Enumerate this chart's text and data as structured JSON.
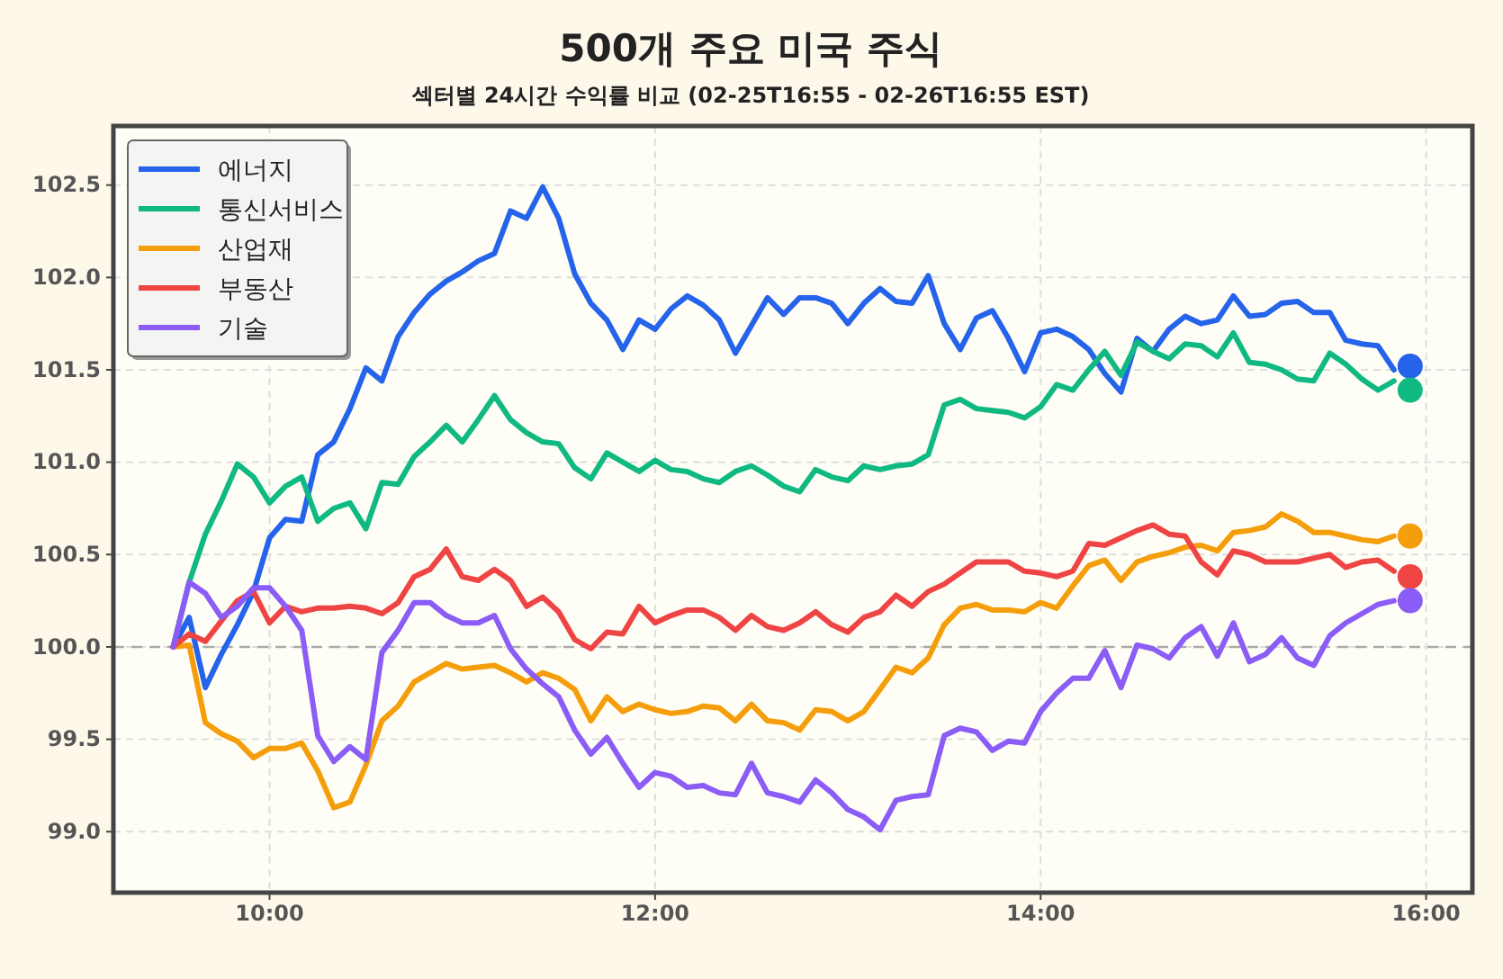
{
  "chart_data": {
    "type": "line",
    "title": "500개 주요 미국 주식",
    "subtitle": "섹터별 24시간 수익률 비교 (02-25T16:55 - 02-26T16:55 EST)",
    "x": [
      9.5,
      9.583,
      9.667,
      9.75,
      9.833,
      9.917,
      10,
      10.083,
      10.167,
      10.25,
      10.333,
      10.417,
      10.5,
      10.583,
      10.667,
      10.75,
      10.833,
      10.917,
      11,
      11.083,
      11.167,
      11.25,
      11.333,
      11.417,
      11.5,
      11.583,
      11.667,
      11.75,
      11.833,
      11.917,
      12,
      12.083,
      12.167,
      12.25,
      12.333,
      12.417,
      12.5,
      12.583,
      12.667,
      12.75,
      12.833,
      12.917,
      13,
      13.083,
      13.167,
      13.25,
      13.333,
      13.417,
      13.5,
      13.583,
      13.667,
      13.75,
      13.833,
      13.917,
      14,
      14.083,
      14.167,
      14.25,
      14.333,
      14.417,
      14.5,
      14.583,
      14.667,
      14.75,
      14.833,
      14.917,
      15,
      15.083,
      15.167,
      15.25,
      15.333,
      15.417,
      15.5,
      15.583,
      15.667,
      15.75,
      15.833,
      15.917
    ],
    "series": [
      {
        "name": "에너지",
        "color": "#2563eb",
        "values": [
          100.0,
          100.16,
          99.78,
          99.96,
          100.12,
          100.3,
          100.59,
          100.69,
          100.68,
          101.04,
          101.11,
          101.29,
          101.51,
          101.44,
          101.68,
          101.81,
          101.91,
          101.98,
          102.03,
          102.09,
          102.13,
          102.36,
          102.32,
          102.49,
          102.32,
          102.02,
          101.86,
          101.77,
          101.61,
          101.77,
          101.72,
          101.83,
          101.9,
          101.85,
          101.77,
          101.59,
          101.74,
          101.89,
          101.8,
          101.89,
          101.89,
          101.86,
          101.75,
          101.86,
          101.94,
          101.87,
          101.86,
          102.01,
          101.75,
          101.61,
          101.78,
          101.82,
          101.67,
          101.49,
          101.7,
          101.72,
          101.68,
          101.61,
          101.48,
          101.38,
          101.67,
          101.6,
          101.72,
          101.79,
          101.75,
          101.77,
          101.9,
          101.79,
          101.8,
          101.86,
          101.87,
          101.81,
          101.81,
          101.66,
          101.64,
          101.63,
          101.5,
          null
        ]
      },
      {
        "name": "통신서비스",
        "color": "#10b981",
        "values": [
          100.0,
          100.35,
          100.61,
          100.79,
          100.99,
          100.92,
          100.78,
          100.87,
          100.92,
          100.68,
          100.75,
          100.78,
          100.64,
          100.89,
          100.88,
          101.03,
          101.11,
          101.2,
          101.11,
          101.23,
          101.36,
          101.23,
          101.16,
          101.11,
          101.1,
          100.97,
          100.91,
          101.05,
          101.0,
          100.95,
          101.01,
          100.96,
          100.95,
          100.91,
          100.89,
          100.95,
          100.98,
          100.93,
          100.87,
          100.84,
          100.96,
          100.92,
          100.9,
          100.98,
          100.96,
          100.98,
          100.99,
          101.04,
          101.31,
          101.34,
          101.29,
          101.28,
          101.27,
          101.24,
          101.3,
          101.42,
          101.39,
          101.5,
          101.6,
          101.47,
          101.65,
          101.6,
          101.56,
          101.64,
          101.63,
          101.57,
          101.7,
          101.54,
          101.53,
          101.5,
          101.45,
          101.44,
          101.59,
          101.53,
          101.45,
          101.39,
          101.44,
          null
        ]
      },
      {
        "name": "산업재",
        "color": "#f59e0b",
        "values": [
          100.0,
          100.01,
          99.59,
          99.53,
          99.49,
          99.4,
          99.45,
          99.45,
          99.48,
          99.33,
          99.13,
          99.16,
          99.36,
          99.6,
          99.68,
          99.81,
          99.86,
          99.91,
          99.88,
          99.89,
          99.9,
          99.86,
          99.81,
          99.86,
          99.83,
          99.77,
          99.6,
          99.73,
          99.65,
          99.69,
          99.66,
          99.64,
          99.65,
          99.68,
          99.67,
          99.6,
          99.69,
          99.6,
          99.59,
          99.55,
          99.66,
          99.65,
          99.6,
          99.65,
          99.77,
          99.89,
          99.86,
          99.94,
          100.12,
          100.21,
          100.23,
          100.2,
          100.2,
          100.19,
          100.24,
          100.21,
          100.33,
          100.44,
          100.47,
          100.36,
          100.46,
          100.49,
          100.51,
          100.54,
          100.55,
          100.52,
          100.62,
          100.63,
          100.65,
          100.72,
          100.68,
          100.62,
          100.62,
          100.6,
          100.58,
          100.57,
          100.6,
          null
        ]
      },
      {
        "name": "부동산",
        "color": "#ef4444",
        "values": [
          100.0,
          100.07,
          100.03,
          100.14,
          100.25,
          100.3,
          100.13,
          100.22,
          100.19,
          100.21,
          100.21,
          100.22,
          100.21,
          100.18,
          100.24,
          100.38,
          100.42,
          100.53,
          100.38,
          100.36,
          100.42,
          100.36,
          100.22,
          100.27,
          100.19,
          100.04,
          99.99,
          100.08,
          100.07,
          100.22,
          100.13,
          100.17,
          100.2,
          100.2,
          100.16,
          100.09,
          100.17,
          100.11,
          100.09,
          100.13,
          100.19,
          100.12,
          100.08,
          100.16,
          100.19,
          100.28,
          100.22,
          100.3,
          100.34,
          100.4,
          100.46,
          100.46,
          100.46,
          100.41,
          100.4,
          100.38,
          100.41,
          100.56,
          100.55,
          100.59,
          100.63,
          100.66,
          100.61,
          100.6,
          100.46,
          100.39,
          100.52,
          100.5,
          100.46,
          100.46,
          100.46,
          100.48,
          100.5,
          100.43,
          100.46,
          100.47,
          100.41,
          null
        ]
      },
      {
        "name": "기술",
        "color": "#8b5cf6",
        "values": [
          100.0,
          100.35,
          100.29,
          100.16,
          100.22,
          100.32,
          100.32,
          100.22,
          100.09,
          99.52,
          99.38,
          99.46,
          99.39,
          99.97,
          100.09,
          100.24,
          100.24,
          100.17,
          100.13,
          100.13,
          100.17,
          99.99,
          99.88,
          99.8,
          99.73,
          99.55,
          99.42,
          99.51,
          99.37,
          99.24,
          99.32,
          99.3,
          99.24,
          99.25,
          99.21,
          99.2,
          99.37,
          99.21,
          99.19,
          99.16,
          99.28,
          99.21,
          99.12,
          99.08,
          99.01,
          99.17,
          99.19,
          99.2,
          99.52,
          99.56,
          99.54,
          99.44,
          99.49,
          99.48,
          99.65,
          99.75,
          99.83,
          99.83,
          99.98,
          99.78,
          100.01,
          99.99,
          99.94,
          100.05,
          100.11,
          99.95,
          100.13,
          99.92,
          99.96,
          100.05,
          99.94,
          99.9,
          100.06,
          100.13,
          100.18,
          100.23,
          100.25,
          null
        ]
      },
      {
        "type": "scatter",
        "marker": "circle",
        "color": "#2563eb",
        "values": [
          null,
          null,
          null,
          null,
          null,
          null,
          null,
          null,
          null,
          null,
          null,
          null,
          null,
          null,
          null,
          null,
          null,
          null,
          null,
          null,
          null,
          null,
          null,
          null,
          null,
          null,
          null,
          null,
          null,
          null,
          null,
          null,
          null,
          null,
          null,
          null,
          null,
          null,
          null,
          null,
          null,
          null,
          null,
          null,
          null,
          null,
          null,
          null,
          null,
          null,
          null,
          null,
          null,
          null,
          null,
          null,
          null,
          null,
          null,
          null,
          null,
          null,
          null,
          null,
          null,
          null,
          null,
          null,
          null,
          null,
          null,
          null,
          null,
          null,
          null,
          null,
          null,
          101.52
        ]
      },
      {
        "type": "scatter",
        "marker": "circle",
        "color": "#10b981",
        "values": [
          null,
          null,
          null,
          null,
          null,
          null,
          null,
          null,
          null,
          null,
          null,
          null,
          null,
          null,
          null,
          null,
          null,
          null,
          null,
          null,
          null,
          null,
          null,
          null,
          null,
          null,
          null,
          null,
          null,
          null,
          null,
          null,
          null,
          null,
          null,
          null,
          null,
          null,
          null,
          null,
          null,
          null,
          null,
          null,
          null,
          null,
          null,
          null,
          null,
          null,
          null,
          null,
          null,
          null,
          null,
          null,
          null,
          null,
          null,
          null,
          null,
          null,
          null,
          null,
          null,
          null,
          null,
          null,
          null,
          null,
          null,
          null,
          null,
          null,
          null,
          null,
          null,
          101.39
        ]
      },
      {
        "type": "scatter",
        "marker": "circle",
        "color": "#f59e0b",
        "values": [
          null,
          null,
          null,
          null,
          null,
          null,
          null,
          null,
          null,
          null,
          null,
          null,
          null,
          null,
          null,
          null,
          null,
          null,
          null,
          null,
          null,
          null,
          null,
          null,
          null,
          null,
          null,
          null,
          null,
          null,
          null,
          null,
          null,
          null,
          null,
          null,
          null,
          null,
          null,
          null,
          null,
          null,
          null,
          null,
          null,
          null,
          null,
          null,
          null,
          null,
          null,
          null,
          null,
          null,
          null,
          null,
          null,
          null,
          null,
          null,
          null,
          null,
          null,
          null,
          null,
          null,
          null,
          null,
          null,
          null,
          null,
          null,
          null,
          null,
          null,
          null,
          null,
          100.6
        ]
      },
      {
        "type": "scatter",
        "marker": "circle",
        "color": "#ef4444",
        "values": [
          null,
          null,
          null,
          null,
          null,
          null,
          null,
          null,
          null,
          null,
          null,
          null,
          null,
          null,
          null,
          null,
          null,
          null,
          null,
          null,
          null,
          null,
          null,
          null,
          null,
          null,
          null,
          null,
          null,
          null,
          null,
          null,
          null,
          null,
          null,
          null,
          null,
          null,
          null,
          null,
          null,
          null,
          null,
          null,
          null,
          null,
          null,
          null,
          null,
          null,
          null,
          null,
          null,
          null,
          null,
          null,
          null,
          null,
          null,
          null,
          null,
          null,
          null,
          null,
          null,
          null,
          null,
          null,
          null,
          null,
          null,
          null,
          null,
          null,
          null,
          null,
          null,
          100.38
        ]
      },
      {
        "type": "scatter",
        "marker": "circle",
        "color": "#8b5cf6",
        "values": [
          null,
          null,
          null,
          null,
          null,
          null,
          null,
          null,
          null,
          null,
          null,
          null,
          null,
          null,
          null,
          null,
          null,
          null,
          null,
          null,
          null,
          null,
          null,
          null,
          null,
          null,
          null,
          null,
          null,
          null,
          null,
          null,
          null,
          null,
          null,
          null,
          null,
          null,
          null,
          null,
          null,
          null,
          null,
          null,
          null,
          null,
          null,
          null,
          null,
          null,
          null,
          null,
          null,
          null,
          null,
          null,
          null,
          null,
          null,
          null,
          null,
          null,
          null,
          null,
          null,
          null,
          null,
          null,
          null,
          null,
          null,
          null,
          null,
          null,
          null,
          null,
          null,
          100.25
        ]
      }
    ],
    "xlim": [
      9.19,
      16.24
    ],
    "xticks": [
      {
        "value": 10,
        "label": "10:00"
      },
      {
        "value": 12,
        "label": "12:00"
      },
      {
        "value": 14,
        "label": "14:00"
      },
      {
        "value": 16,
        "label": "16:00"
      }
    ],
    "ylim": [
      98.67,
      102.82
    ],
    "yticks": [
      {
        "value": 99,
        "label": "99.0"
      },
      99.5,
      {
        "value": 100,
        "label": "100.0"
      },
      100.5,
      {
        "value": 101,
        "label": "101.0"
      },
      101.5,
      {
        "value": 102,
        "label": "102.0"
      },
      102.5
    ],
    "ref_lines": [
      {
        "axis": "y",
        "value": 100,
        "color": "#aaaaaa",
        "line_style": "dashed"
      }
    ],
    "grid": true,
    "legend": "top left",
    "line_style": "solid"
  }
}
